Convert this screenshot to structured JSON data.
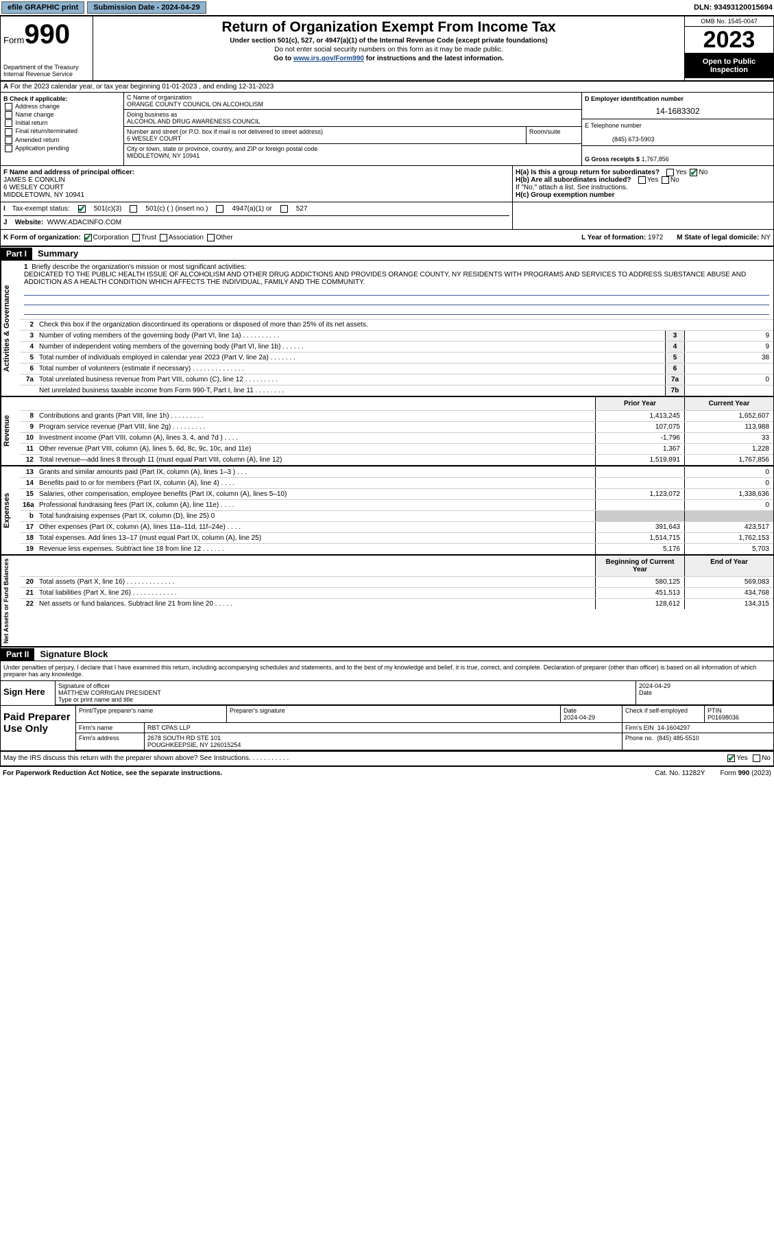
{
  "topbar": {
    "efile": "efile GRAPHIC print",
    "subdate_lbl": "Submission Date - 2024-04-29",
    "dln": "DLN: 93493120015694"
  },
  "header": {
    "form_lbl": "Form",
    "form_no": "990",
    "dept": "Department of the Treasury\nInternal Revenue Service",
    "title": "Return of Organization Exempt From Income Tax",
    "sub1": "Under section 501(c), 527, or 4947(a)(1) of the Internal Revenue Code (except private foundations)",
    "sub2": "Do not enter social security numbers on this form as it may be made public.",
    "sub3_pre": "Go to ",
    "sub3_link": "www.irs.gov/Form990",
    "sub3_post": " for instructions and the latest information.",
    "omb": "OMB No. 1545-0047",
    "year": "2023",
    "open": "Open to Public Inspection"
  },
  "rowA": {
    "text": "For the 2023 calendar year, or tax year beginning 01-01-2023   , and ending 12-31-2023"
  },
  "colB": {
    "hdr": "B Check if applicable:",
    "items": [
      "Address change",
      "Name change",
      "Initial return",
      "Final return/terminated",
      "Amended return",
      "Application pending"
    ]
  },
  "colC": {
    "name_lbl": "C Name of organization",
    "name": "ORANGE COUNTY COUNCIL ON ALCOHOLISM",
    "dba_lbl": "Doing business as",
    "dba": "ALCOHOL AND DRUG AWARENESS COUNCIL",
    "street_lbl": "Number and street (or P.O. box if mail is not delivered to street address)",
    "street": "6 WESLEY COURT",
    "room_lbl": "Room/suite",
    "city_lbl": "City or town, state or province, country, and ZIP or foreign postal code",
    "city": "MIDDLETOWN, NY  10941"
  },
  "colD": {
    "ein_lbl": "D Employer identification number",
    "ein": "14-1683302",
    "tel_lbl": "E Telephone number",
    "tel": "(845) 673-5903",
    "gross_lbl": "G Gross receipts $",
    "gross": "1,767,856"
  },
  "secF": {
    "lbl": "F Name and address of principal officer:",
    "name": "JAMES E CONKLIN",
    "street": "6 WESLEY COURT",
    "city": "MIDDLETOWN, NY  10941"
  },
  "secH": {
    "ha": "H(a)  Is this a group return for subordinates?",
    "hb": "H(b)  Are all subordinates included?",
    "hb2": "If \"No,\" attach a list. See instructions.",
    "hc": "H(c)  Group exemption number",
    "yes": "Yes",
    "no": "No"
  },
  "secI": {
    "lbl": "Tax-exempt status:",
    "o1": "501(c)(3)",
    "o2": "501(c) (  ) (insert no.)",
    "o3": "4947(a)(1) or",
    "o4": "527"
  },
  "secJ": {
    "lbl": "Website:",
    "val": "WWW.ADACINFO.COM"
  },
  "secK": {
    "lbl": "K Form of organization:",
    "o1": "Corporation",
    "o2": "Trust",
    "o3": "Association",
    "o4": "Other",
    "yof_lbl": "L Year of formation:",
    "yof": "1972",
    "dom_lbl": "M State of legal domicile:",
    "dom": "NY"
  },
  "part1": {
    "hdr": "Part I",
    "title": "Summary"
  },
  "mission": {
    "ln": "1",
    "lbl": "Briefly describe the organization's mission or most significant activities:",
    "txt": "DEDICATED TO THE PUBLIC HEALTH ISSUE OF ALCOHOLISM AND OTHER DRUG ADDICTIONS AND PROVIDES ORANGE COUNTY, NY RESIDENTS WITH PROGRAMS AND SERVICES TO ADDRESS SUBSTANCE ABUSE AND ADDICTION AS A HEALTH CONDITION WHICH AFFECTS THE INDIVIDUAL, FAMILY AND THE COMMUNITY."
  },
  "gov_lines": [
    {
      "n": "2",
      "t": "Check this box    if the organization discontinued its operations or disposed of more than 25% of its net assets.",
      "box": "",
      "v": ""
    },
    {
      "n": "3",
      "t": "Number of voting members of the governing body (Part VI, line 1a)   .    .    .    .    .    .    .    .    .    .",
      "box": "3",
      "v": "9"
    },
    {
      "n": "4",
      "t": "Number of independent voting members of the governing body (Part VI, line 1b)   .    .    .    .    .    .",
      "box": "4",
      "v": "9"
    },
    {
      "n": "5",
      "t": "Total number of individuals employed in calendar year 2023 (Part V, line 2a)   .    .    .    .    .    .    .",
      "box": "5",
      "v": "38"
    },
    {
      "n": "6",
      "t": "Total number of volunteers (estimate if necessary)   .    .    .    .    .    .    .    .    .    .    .    .    .    .",
      "box": "6",
      "v": ""
    },
    {
      "n": "7a",
      "t": "Total unrelated business revenue from Part VIII, column (C), line 12   .    .    .    .    .    .    .    .    .",
      "box": "7a",
      "v": "0"
    },
    {
      "n": "",
      "t": "Net unrelated business taxable income from Form 990-T, Part I, line 11   .    .    .    .    .    .    .    .",
      "box": "7b",
      "v": ""
    }
  ],
  "rev_hdr": {
    "c1": "Prior Year",
    "c2": "Current Year"
  },
  "rev_lines": [
    {
      "n": "8",
      "t": "Contributions and grants (Part VIII, line 1h)   .    .    .    .    .    .    .    .    .",
      "v1": "1,413,245",
      "v2": "1,652,607"
    },
    {
      "n": "9",
      "t": "Program service revenue (Part VIII, line 2g)   .    .    .    .    .    .    .    .    .",
      "v1": "107,075",
      "v2": "113,988"
    },
    {
      "n": "10",
      "t": "Investment income (Part VIII, column (A), lines 3, 4, and 7d )   .    .    .    .",
      "v1": "-1,796",
      "v2": "33"
    },
    {
      "n": "11",
      "t": "Other revenue (Part VIII, column (A), lines 5, 6d, 8c, 9c, 10c, and 11e)",
      "v1": "1,367",
      "v2": "1,228"
    },
    {
      "n": "12",
      "t": "Total revenue—add lines 8 through 11 (must equal Part VIII, column (A), line 12)",
      "v1": "1,519,891",
      "v2": "1,767,856"
    }
  ],
  "exp_lines": [
    {
      "n": "13",
      "t": "Grants and similar amounts paid (Part IX, column (A), lines 1–3 )   .    .    .",
      "v1": "",
      "v2": "0"
    },
    {
      "n": "14",
      "t": "Benefits paid to or for members (Part IX, column (A), line 4)   .    .    .    .",
      "v1": "",
      "v2": "0"
    },
    {
      "n": "15",
      "t": "Salaries, other compensation, employee benefits (Part IX, column (A), lines 5–10)",
      "v1": "1,123,072",
      "v2": "1,338,636"
    },
    {
      "n": "16a",
      "t": "Professional fundraising fees (Part IX, column (A), line 11e)   .    .    .    .",
      "v1": "",
      "v2": "0"
    },
    {
      "n": "b",
      "t": "Total fundraising expenses (Part IX, column (D), line 25) 0",
      "v1": "",
      "v2": "",
      "noVal": true
    },
    {
      "n": "17",
      "t": "Other expenses (Part IX, column (A), lines 11a–11d, 11f–24e)   .    .    .    .",
      "v1": "391,643",
      "v2": "423,517"
    },
    {
      "n": "18",
      "t": "Total expenses. Add lines 13–17 (must equal Part IX, column (A), line 25)",
      "v1": "1,514,715",
      "v2": "1,762,153"
    },
    {
      "n": "19",
      "t": "Revenue less expenses. Subtract line 18 from line 12   .    .    .    .    .    .",
      "v1": "5,176",
      "v2": "5,703"
    }
  ],
  "net_hdr": {
    "c1": "Beginning of Current Year",
    "c2": "End of Year"
  },
  "net_lines": [
    {
      "n": "20",
      "t": "Total assets (Part X, line 16)   .    .    .    .    .    .    .    .    .    .    .    .    .",
      "v1": "580,125",
      "v2": "569,083"
    },
    {
      "n": "21",
      "t": "Total liabilities (Part X, line 26)   .    .    .    .    .    .    .    .    .    .    .    .",
      "v1": "451,513",
      "v2": "434,768"
    },
    {
      "n": "22",
      "t": "Net assets or fund balances. Subtract line 21 from line 20   .    .    .    .    .",
      "v1": "128,612",
      "v2": "134,315"
    }
  ],
  "vtabs": {
    "gov": "Activities & Governance",
    "rev": "Revenue",
    "exp": "Expenses",
    "net": "Net Assets or Fund Balances"
  },
  "part2": {
    "hdr": "Part II",
    "title": "Signature Block",
    "perjury": "Under penalties of perjury, I declare that I have examined this return, including accompanying schedules and statements, and to the best of my knowledge and belief, it is true, correct, and complete. Declaration of preparer (other than officer) is based on all information of which preparer has any knowledge."
  },
  "sign": {
    "lbl": "Sign Here",
    "sig_lbl": "Signature of officer",
    "name": "MATTHEW CORRIGAN  PRESIDENT",
    "type_lbl": "Type or print name and title",
    "date_lbl": "Date",
    "date": "2024-04-29"
  },
  "prep": {
    "lbl": "Paid Preparer Use Only",
    "pname_lbl": "Print/Type preparer's name",
    "psig_lbl": "Preparer's signature",
    "pdate_lbl": "Date",
    "pdate": "2024-04-29",
    "chk_lbl": "Check      if self-employed",
    "ptin_lbl": "PTIN",
    "ptin": "P01698036",
    "firm_lbl": "Firm's name",
    "firm": "RBT CPAS LLP",
    "fein_lbl": "Firm's EIN",
    "fein": "14-1604297",
    "faddr_lbl": "Firm's address",
    "faddr": "2678 SOUTH RD STE 101",
    "fcity": "POUGHKEEPSIE, NY  126015254",
    "phone_lbl": "Phone no.",
    "phone": "(845) 485-5510"
  },
  "discuss": {
    "txt": "May the IRS discuss this return with the preparer shown above? See Instructions.   .    .    .    .    .    .    .    .    .    .",
    "yes": "Yes",
    "no": "No"
  },
  "footer": {
    "pra": "For Paperwork Reduction Act Notice, see the separate instructions.",
    "cat": "Cat. No. 11282Y",
    "form": "Form 990 (2023)"
  }
}
